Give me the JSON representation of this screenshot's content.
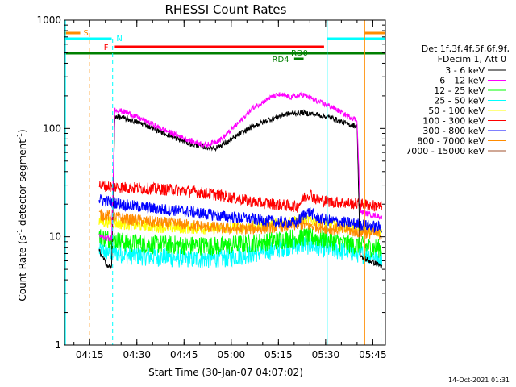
{
  "chart_data": {
    "type": "line",
    "title": "RHESSI Count Rates",
    "xlabel": "Start Time (30-Jan-07 04:07:02)",
    "ylabel_main": "Count Rate (s",
    "ylabel_sup1": "-1",
    "ylabel_mid": " detector segment",
    "ylabel_sup2": "-1",
    "ylabel_end": ")",
    "yscale": "log",
    "ylim": [
      1,
      1000
    ],
    "xlim_minutes": [
      0,
      102
    ],
    "xtick_labels": [
      "04:15",
      "04:30",
      "04:45",
      "05:00",
      "05:15",
      "05:30",
      "05:45"
    ],
    "xtick_minutes": [
      8,
      23,
      38,
      53,
      68,
      83,
      98
    ],
    "ytick_labels": [
      "1",
      "10",
      "100",
      "1000"
    ],
    "ytick_values": [
      1,
      10,
      100,
      1000
    ],
    "legend_header": [
      "Det 1f,3f,4f,5f,6f,9f,",
      "FDecim 1, Att 0"
    ],
    "series": [
      {
        "name": "3 - 6 keV",
        "color": "#000000",
        "data": [
          [
            11,
            7.5
          ],
          [
            12,
            6.5
          ],
          [
            13,
            5.8
          ],
          [
            14,
            5.3
          ],
          [
            15,
            5.2
          ],
          [
            16,
            130
          ],
          [
            20,
            122
          ],
          [
            25,
            110
          ],
          [
            30,
            95
          ],
          [
            35,
            82
          ],
          [
            40,
            72
          ],
          [
            45,
            67
          ],
          [
            48,
            66
          ],
          [
            52,
            75
          ],
          [
            56,
            90
          ],
          [
            60,
            105
          ],
          [
            65,
            120
          ],
          [
            70,
            135
          ],
          [
            75,
            140
          ],
          [
            80,
            135
          ],
          [
            85,
            125
          ],
          [
            90,
            110
          ],
          [
            93,
            105
          ],
          [
            94,
            6.5
          ],
          [
            97,
            6.0
          ],
          [
            100,
            5.5
          ],
          [
            101,
            5.2
          ]
        ]
      },
      {
        "name": "6 - 12 keV",
        "color": "#ff00ff",
        "data": [
          [
            11,
            10
          ],
          [
            15,
            9.5
          ],
          [
            16,
            150
          ],
          [
            20,
            140
          ],
          [
            25,
            120
          ],
          [
            30,
            102
          ],
          [
            35,
            88
          ],
          [
            40,
            77
          ],
          [
            45,
            70
          ],
          [
            50,
            80
          ],
          [
            55,
            110
          ],
          [
            60,
            155
          ],
          [
            65,
            190
          ],
          [
            68,
            205
          ],
          [
            72,
            195
          ],
          [
            76,
            205
          ],
          [
            80,
            180
          ],
          [
            85,
            158
          ],
          [
            90,
            130
          ],
          [
            93,
            120
          ],
          [
            94,
            17
          ],
          [
            97,
            16
          ],
          [
            100,
            15.5
          ],
          [
            101,
            15
          ]
        ]
      },
      {
        "name": "12 - 25 keV",
        "color": "#00ff00",
        "data": [
          [
            11,
            10
          ],
          [
            15,
            9.5
          ],
          [
            20,
            8.8
          ],
          [
            30,
            8.5
          ],
          [
            40,
            8.3
          ],
          [
            50,
            8.2
          ],
          [
            60,
            8.8
          ],
          [
            70,
            9.5
          ],
          [
            75,
            10
          ],
          [
            80,
            9.8
          ],
          [
            85,
            9.2
          ],
          [
            90,
            8.6
          ],
          [
            94,
            8.3
          ],
          [
            97,
            8
          ],
          [
            101,
            7.8
          ]
        ]
      },
      {
        "name": "25 - 50 keV",
        "color": "#00ffff",
        "data": [
          [
            11,
            7.5
          ],
          [
            15,
            7.2
          ],
          [
            20,
            6.8
          ],
          [
            30,
            6.5
          ],
          [
            40,
            6.2
          ],
          [
            50,
            6.3
          ],
          [
            60,
            7
          ],
          [
            70,
            8
          ],
          [
            75,
            8.5
          ],
          [
            80,
            8.2
          ],
          [
            85,
            7.6
          ],
          [
            90,
            7.2
          ],
          [
            94,
            7
          ],
          [
            97,
            6.8
          ],
          [
            101,
            6.5
          ]
        ]
      },
      {
        "name": "50 - 100 keV",
        "color": "#ffff00",
        "data": [
          [
            11,
            14
          ],
          [
            15,
            13.5
          ],
          [
            20,
            13
          ],
          [
            30,
            12.3
          ],
          [
            40,
            12
          ],
          [
            50,
            11.8
          ],
          [
            60,
            12.5
          ],
          [
            70,
            13.5
          ],
          [
            75,
            14.5
          ],
          [
            80,
            14
          ],
          [
            85,
            13
          ],
          [
            90,
            12.3
          ],
          [
            94,
            12
          ],
          [
            97,
            11.5
          ],
          [
            101,
            11.2
          ]
        ]
      },
      {
        "name": "100 - 300 keV",
        "color": "#ff0000",
        "data": [
          [
            11,
            30
          ],
          [
            15,
            29
          ],
          [
            20,
            28.5
          ],
          [
            30,
            27.5
          ],
          [
            40,
            26.5
          ],
          [
            50,
            24
          ],
          [
            60,
            21
          ],
          [
            70,
            19.5
          ],
          [
            74,
            19
          ],
          [
            76,
            23
          ],
          [
            78,
            25
          ],
          [
            80,
            22
          ],
          [
            85,
            21
          ],
          [
            90,
            20.5
          ],
          [
            94,
            20
          ],
          [
            97,
            19.5
          ],
          [
            101,
            19
          ]
        ]
      },
      {
        "name": "300 - 800 keV",
        "color": "#0000ff",
        "data": [
          [
            11,
            22
          ],
          [
            15,
            21
          ],
          [
            20,
            19.5
          ],
          [
            30,
            18
          ],
          [
            40,
            17
          ],
          [
            50,
            15.5
          ],
          [
            60,
            14.5
          ],
          [
            70,
            13.5
          ],
          [
            74,
            13.5
          ],
          [
            76,
            16
          ],
          [
            78,
            17
          ],
          [
            80,
            15
          ],
          [
            85,
            14
          ],
          [
            90,
            13.5
          ],
          [
            94,
            13
          ],
          [
            97,
            12.5
          ],
          [
            101,
            12.2
          ]
        ]
      },
      {
        "name": "800 - 7000 keV",
        "color": "#ff8c00",
        "data": [
          [
            11,
            16
          ],
          [
            15,
            15.5
          ],
          [
            20,
            14.5
          ],
          [
            30,
            13.5
          ],
          [
            40,
            12.8
          ],
          [
            50,
            12
          ],
          [
            60,
            11.8
          ],
          [
            70,
            12.5
          ],
          [
            75,
            13
          ],
          [
            80,
            12.5
          ],
          [
            85,
            11.8
          ],
          [
            90,
            11.5
          ],
          [
            94,
            11
          ],
          [
            97,
            10.8
          ],
          [
            101,
            10.5
          ]
        ]
      },
      {
        "name": "7000 - 15000 keV",
        "color": "#a0522d",
        "data": []
      }
    ],
    "annotations": {
      "attenuator_label": "S",
      "night_label": "N",
      "flare_label": "F",
      "rd_labels": [
        "RD0",
        "RD4"
      ]
    },
    "timestamp": "14-Oct-2021 01:31"
  }
}
